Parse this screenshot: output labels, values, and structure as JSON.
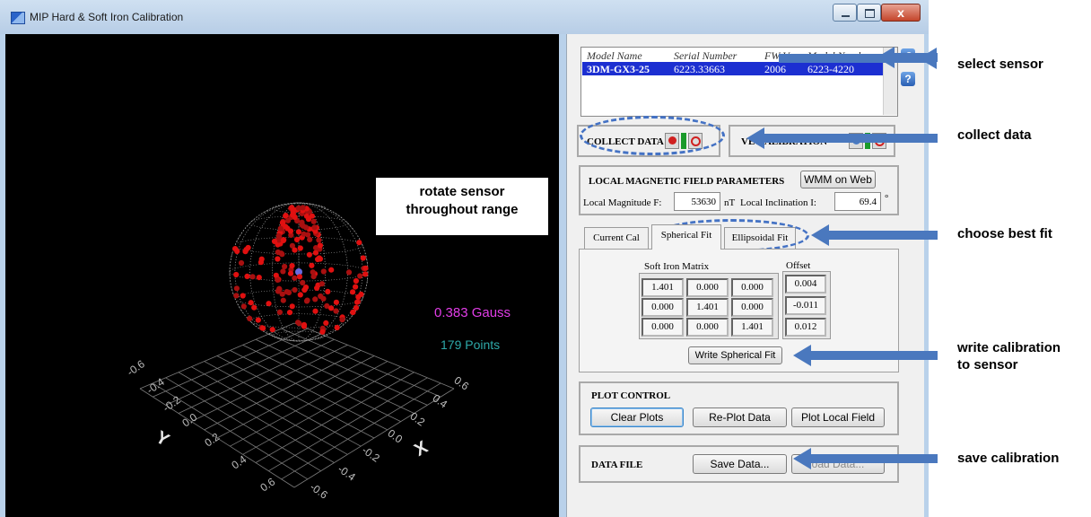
{
  "window": {
    "title": "MIP Hard & Soft Iron Calibration",
    "close_glyph": "x"
  },
  "plot": {
    "callout": [
      "rotate sensor",
      "throughout range"
    ],
    "magnitude_text": "0.383 Gauss",
    "points_text": "179 Points",
    "x_ticks": [
      "0.6",
      "0.4",
      "0.2",
      "0.0",
      "-0.2",
      "-0.4",
      "-0.6"
    ],
    "y_ticks": [
      "-0.6",
      "-0.4",
      "-0.2",
      "0.0",
      "0.2",
      "0.4",
      "0.6"
    ],
    "x_label": "X",
    "y_label": "Y",
    "colors": {
      "points": "#e01010",
      "magnitude": "#e23de8",
      "count": "#2ea9a9"
    }
  },
  "sensor_list": {
    "headers": [
      "Model Name",
      "Serial Number",
      "FW Ver",
      "Model Number"
    ],
    "rows": [
      [
        "3DM-GX3-25",
        "6223.33663",
        "2006",
        "6223-4220"
      ]
    ],
    "refresh_icon": "refresh-icon",
    "help_icon": "help-icon",
    "help_glyph": "?"
  },
  "collect": {
    "label": "COLLECT DATA"
  },
  "verify": {
    "label": "VERIFY CALIBRATION",
    "visible_label": "VE    CALIBRATION"
  },
  "field_params": {
    "title": "LOCAL MAGNETIC FIELD PARAMETERS",
    "wmm_button": "WMM on Web",
    "magnitude_label": "Local Magnitude F:",
    "magnitude_value": "53630",
    "magnitude_unit": "nT",
    "inclination_label": "Local Inclination I:",
    "inclination_value": "69.4",
    "inclination_unit": "°"
  },
  "tabs": [
    "Current Cal",
    "Spherical Fit",
    "Ellipsoidal Fit"
  ],
  "fit": {
    "matrix_label": "Soft Iron Matrix",
    "offset_label": "Offset",
    "matrix": [
      [
        "1.401",
        "0.000",
        "0.000"
      ],
      [
        "0.000",
        "1.401",
        "0.000"
      ],
      [
        "0.000",
        "0.000",
        "1.401"
      ]
    ],
    "offset": [
      "0.004",
      "-0.011",
      "0.012"
    ],
    "write_button": "Write Spherical Fit"
  },
  "plot_control": {
    "title": "PLOT CONTROL",
    "buttons": [
      "Clear Plots",
      "Re-Plot Data",
      "Plot Local Field"
    ]
  },
  "data_file": {
    "title": "DATA FILE",
    "save_data": "Save Data...",
    "load_partial": "oad Data..."
  },
  "annotations": [
    "select sensor",
    "collect data",
    "choose best fit",
    "write calibration",
    "to sensor",
    "save calibration"
  ]
}
